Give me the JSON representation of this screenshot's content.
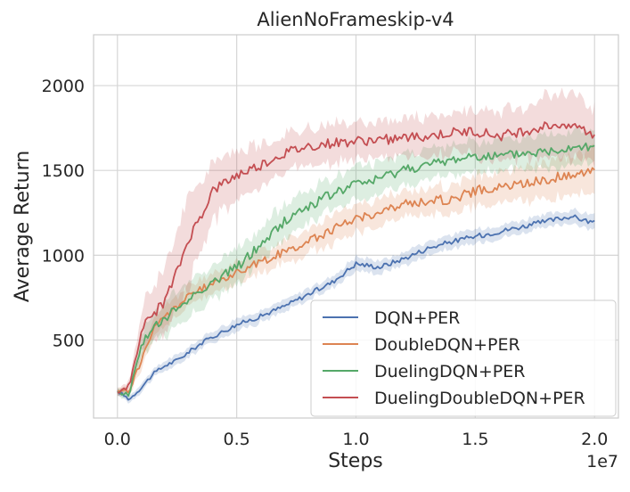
{
  "chart_data": {
    "type": "line",
    "title": "AlienNoFrameskip-v4",
    "xlabel": "Steps",
    "ylabel": "Average Return",
    "x_offset_label": "1e7",
    "xlim": [
      -0.1,
      2.1
    ],
    "ylim": [
      40,
      2300
    ],
    "xticks": [
      0.0,
      0.5,
      1.0,
      1.5,
      2.0
    ],
    "xtick_labels": [
      "0.0",
      "0.5",
      "1.0",
      "1.5",
      "2.0"
    ],
    "yticks": [
      500,
      1000,
      1500,
      2000
    ],
    "ytick_labels": [
      "500",
      "1000",
      "1500",
      "2000"
    ],
    "grid": true,
    "legend_position": "bottom-right",
    "series": [
      {
        "name": "DQN+PER",
        "color": "#4c72b0",
        "x": [
          0.0,
          0.05,
          0.1,
          0.15,
          0.2,
          0.25,
          0.3,
          0.35,
          0.4,
          0.5,
          0.6,
          0.7,
          0.8,
          0.9,
          1.0,
          1.1,
          1.2,
          1.3,
          1.4,
          1.5,
          1.6,
          1.7,
          1.8,
          1.9,
          2.0
        ],
        "y": [
          200,
          150,
          220,
          300,
          350,
          380,
          430,
          480,
          520,
          590,
          640,
          700,
          770,
          840,
          950,
          930,
          980,
          1040,
          1080,
          1110,
          1140,
          1170,
          1200,
          1230,
          1190
        ],
        "band": [
          20,
          20,
          25,
          25,
          30,
          30,
          30,
          30,
          30,
          35,
          35,
          35,
          35,
          35,
          40,
          40,
          40,
          40,
          40,
          40,
          40,
          40,
          40,
          40,
          40
        ]
      },
      {
        "name": "DoubleDQN+PER",
        "color": "#dd8452",
        "x": [
          0.0,
          0.05,
          0.1,
          0.15,
          0.2,
          0.25,
          0.3,
          0.35,
          0.4,
          0.5,
          0.6,
          0.7,
          0.8,
          0.9,
          1.0,
          1.1,
          1.2,
          1.3,
          1.4,
          1.5,
          1.6,
          1.7,
          1.8,
          1.9,
          2.0
        ],
        "y": [
          200,
          200,
          380,
          560,
          640,
          700,
          760,
          800,
          830,
          900,
          960,
          1020,
          1080,
          1150,
          1220,
          1250,
          1300,
          1320,
          1330,
          1380,
          1400,
          1420,
          1450,
          1470,
          1520
        ],
        "band": [
          20,
          25,
          50,
          60,
          60,
          60,
          60,
          60,
          60,
          60,
          70,
          70,
          70,
          80,
          80,
          80,
          80,
          80,
          90,
          90,
          90,
          100,
          110,
          120,
          140
        ]
      },
      {
        "name": "DuelingDQN+PER",
        "color": "#55a868",
        "x": [
          0.0,
          0.05,
          0.1,
          0.15,
          0.2,
          0.25,
          0.3,
          0.35,
          0.4,
          0.5,
          0.6,
          0.7,
          0.8,
          0.9,
          1.0,
          1.1,
          1.2,
          1.3,
          1.4,
          1.5,
          1.6,
          1.7,
          1.8,
          1.9,
          2.0
        ],
        "y": [
          190,
          180,
          480,
          570,
          620,
          690,
          740,
          800,
          840,
          930,
          1060,
          1200,
          1290,
          1360,
          1420,
          1450,
          1510,
          1530,
          1560,
          1590,
          1580,
          1600,
          1610,
          1640,
          1650
        ],
        "band": [
          20,
          25,
          70,
          90,
          100,
          100,
          100,
          100,
          100,
          100,
          100,
          100,
          100,
          100,
          100,
          100,
          100,
          90,
          90,
          90,
          90,
          90,
          100,
          100,
          100
        ]
      },
      {
        "name": "DuelingDoubleDQN+PER",
        "color": "#c44e52",
        "x": [
          0.0,
          0.05,
          0.1,
          0.15,
          0.2,
          0.25,
          0.3,
          0.35,
          0.4,
          0.5,
          0.6,
          0.7,
          0.8,
          0.9,
          1.0,
          1.1,
          1.2,
          1.3,
          1.4,
          1.5,
          1.6,
          1.7,
          1.8,
          1.9,
          2.0
        ],
        "y": [
          190,
          230,
          560,
          650,
          730,
          900,
          1100,
          1230,
          1380,
          1470,
          1530,
          1600,
          1640,
          1660,
          1670,
          1680,
          1690,
          1700,
          1720,
          1730,
          1700,
          1730,
          1760,
          1780,
          1700
        ],
        "band": [
          20,
          30,
          120,
          180,
          200,
          240,
          260,
          220,
          180,
          150,
          120,
          110,
          110,
          110,
          110,
          110,
          110,
          120,
          130,
          140,
          140,
          150,
          170,
          190,
          160
        ]
      }
    ]
  }
}
